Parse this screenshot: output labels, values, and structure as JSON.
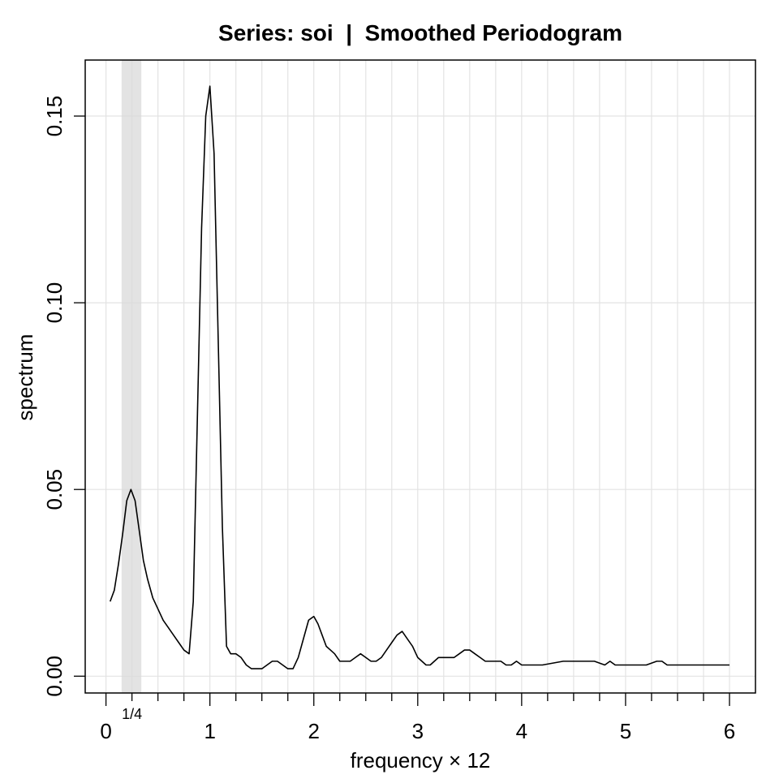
{
  "chart_data": {
    "type": "line",
    "title": "Series: soi  |  Smoothed Periodogram",
    "xlabel": "frequency × 12",
    "ylabel": "spectrum",
    "xlim": [
      -0.2,
      6.25
    ],
    "ylim": [
      -0.0045,
      0.165
    ],
    "x_ticks": [
      0,
      1,
      2,
      3,
      4,
      5,
      6
    ],
    "x_tick_labels": [
      "0",
      "1",
      "2",
      "3",
      "4",
      "5",
      "6"
    ],
    "y_ticks": [
      0.0,
      0.05,
      0.1,
      0.15
    ],
    "y_tick_labels": [
      "0.00",
      "0.05",
      "0.10",
      "0.15"
    ],
    "minor_step": 0.25,
    "grid": true,
    "band": {
      "x0": 0.15,
      "x1": 0.34,
      "label": "1/4",
      "label_x": 0.25
    },
    "series": [
      {
        "x": [
          0.04,
          0.08,
          0.12,
          0.16,
          0.2,
          0.24,
          0.28,
          0.32,
          0.36,
          0.4,
          0.45,
          0.5,
          0.55,
          0.6,
          0.65,
          0.7,
          0.75,
          0.8,
          0.84,
          0.88,
          0.92,
          0.96,
          1.0,
          1.04,
          1.08,
          1.12,
          1.16,
          1.2,
          1.25,
          1.3,
          1.35,
          1.4,
          1.45,
          1.5,
          1.55,
          1.6,
          1.65,
          1.7,
          1.75,
          1.8,
          1.85,
          1.9,
          1.95,
          2.0,
          2.04,
          2.08,
          2.12,
          2.16,
          2.2,
          2.25,
          2.3,
          2.35,
          2.4,
          2.45,
          2.5,
          2.55,
          2.6,
          2.65,
          2.7,
          2.75,
          2.8,
          2.85,
          2.9,
          2.95,
          3.0,
          3.04,
          3.08,
          3.12,
          3.16,
          3.2,
          3.25,
          3.3,
          3.35,
          3.4,
          3.45,
          3.5,
          3.55,
          3.6,
          3.65,
          3.7,
          3.75,
          3.8,
          3.85,
          3.9,
          3.95,
          4.0,
          4.2,
          4.4,
          4.6,
          4.7,
          4.8,
          4.85,
          4.9,
          5.0,
          5.2,
          5.3,
          5.35,
          5.4,
          5.5,
          5.6,
          5.7,
          5.8,
          6.0
        ],
        "values": [
          0.02,
          0.023,
          0.03,
          0.038,
          0.047,
          0.05,
          0.047,
          0.039,
          0.031,
          0.026,
          0.021,
          0.018,
          0.015,
          0.013,
          0.011,
          0.009,
          0.007,
          0.006,
          0.02,
          0.07,
          0.12,
          0.15,
          0.158,
          0.14,
          0.09,
          0.04,
          0.008,
          0.006,
          0.006,
          0.005,
          0.003,
          0.002,
          0.002,
          0.002,
          0.003,
          0.004,
          0.004,
          0.003,
          0.002,
          0.002,
          0.005,
          0.01,
          0.015,
          0.016,
          0.014,
          0.011,
          0.008,
          0.007,
          0.006,
          0.004,
          0.004,
          0.004,
          0.005,
          0.006,
          0.005,
          0.004,
          0.004,
          0.005,
          0.007,
          0.009,
          0.011,
          0.012,
          0.01,
          0.008,
          0.005,
          0.004,
          0.003,
          0.003,
          0.004,
          0.005,
          0.005,
          0.005,
          0.005,
          0.006,
          0.007,
          0.007,
          0.006,
          0.005,
          0.004,
          0.004,
          0.004,
          0.004,
          0.003,
          0.003,
          0.004,
          0.003,
          0.003,
          0.004,
          0.004,
          0.004,
          0.003,
          0.004,
          0.003,
          0.003,
          0.003,
          0.004,
          0.004,
          0.003,
          0.003,
          0.003,
          0.003,
          0.003,
          0.003
        ]
      }
    ]
  }
}
